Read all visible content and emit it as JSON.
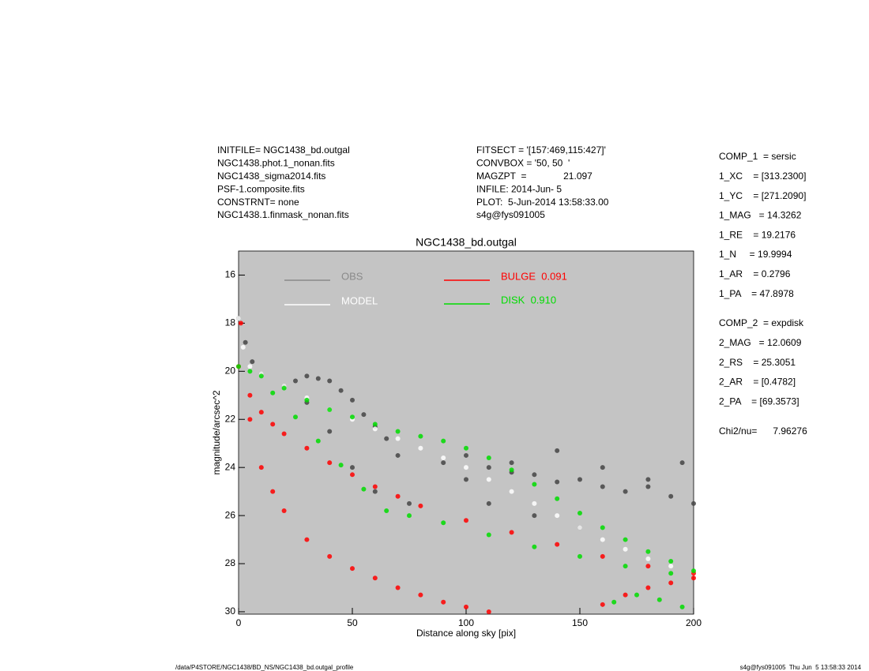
{
  "header": {
    "left": [
      "INITFILE= NGC1438_bd.outgal",
      "NGC1438.phot.1_nonan.fits",
      "NGC1438_sigma2014.fits",
      "PSF-1.composite.fits",
      "CONSTRNT= none",
      "NGC1438.1.finmask_nonan.fits"
    ],
    "middle": [
      "FITSECT = '[157:469,115:427]'",
      "CONVBOX = '50, 50  '",
      "MAGZPT  =              21.097",
      "INFILE: 2014-Jun- 5",
      "PLOT:  5-Jun-2014 13:58:33.00",
      "s4g@fys091005"
    ]
  },
  "params": {
    "comp1": [
      "COMP_1  = sersic",
      "1_XC    = [313.2300]",
      "1_YC    = [271.2090]",
      "1_MAG   = 14.3262",
      "1_RE    = 19.2176",
      "1_N     = 19.9994",
      "1_AR    = 0.2796",
      "1_PA    = 47.8978"
    ],
    "comp2": [
      "COMP_2  = expdisk",
      "2_MAG   = 12.0609",
      "2_RS    = 25.3051",
      "2_AR    = [0.4782]",
      "2_PA    = [69.3573]"
    ],
    "chi2": "Chi2/nu=      7.96276"
  },
  "footer": {
    "left": "/data/P4STORE/NGC1438/BD_NS/NGC1438_bd.outgal_profile",
    "right": "s4g@fys091005  Thu Jun  5 13:58:33 2014"
  },
  "chart_data": {
    "type": "scatter",
    "title": "NGC1438_bd.outgal",
    "x_label": "Distance along sky [pix]",
    "y_label": "magnitude/arcsec^2",
    "xlim": [
      0,
      200
    ],
    "xticks": [
      0,
      50,
      100,
      150,
      200
    ],
    "ylim": [
      15,
      30.1
    ],
    "yticks": [
      16,
      18,
      20,
      22,
      24,
      26,
      28,
      30
    ],
    "y_inverted": true,
    "background": "#c4c4c4",
    "series": [
      {
        "name": "OBS",
        "color": "#454545",
        "legend_color": "#8a8a8a",
        "x": [
          0,
          3,
          6,
          10,
          20,
          25,
          30,
          35,
          40,
          45,
          50,
          55,
          60,
          65,
          70,
          30,
          40,
          50,
          60,
          75,
          90,
          100,
          110,
          120,
          130,
          140,
          150,
          160,
          170,
          180,
          190,
          200,
          100,
          120,
          140,
          160,
          180,
          195,
          110,
          130,
          150
        ],
        "values": [
          17.8,
          18.8,
          19.6,
          20.1,
          20.6,
          20.4,
          20.2,
          20.3,
          20.4,
          20.8,
          21.2,
          21.8,
          22.3,
          22.8,
          23.5,
          21.3,
          22.5,
          24.0,
          25.0,
          25.5,
          23.8,
          24.5,
          24.0,
          24.2,
          24.3,
          24.6,
          24.5,
          24.8,
          25.0,
          24.8,
          25.2,
          25.5,
          23.5,
          23.8,
          23.3,
          24.0,
          24.5,
          23.8,
          25.5,
          26.0,
          26.5
        ]
      },
      {
        "name": "MODEL",
        "color": "#ffffff",
        "legend_color": "#ffffff",
        "x": [
          0,
          2,
          5,
          10,
          20,
          30,
          40,
          50,
          60,
          70,
          80,
          90,
          100,
          110,
          120,
          130,
          140,
          150,
          160,
          170,
          180,
          190,
          200
        ],
        "values": [
          17.8,
          19.0,
          19.8,
          20.1,
          20.6,
          21.1,
          21.6,
          22.0,
          22.4,
          22.8,
          23.2,
          23.6,
          24.0,
          24.5,
          25.0,
          25.5,
          26.0,
          26.5,
          27.0,
          27.4,
          27.8,
          28.1,
          28.4
        ]
      },
      {
        "name": "BULGE  0.091",
        "color": "#ff0000",
        "legend_color": "#ff0000",
        "x": [
          0,
          5,
          10,
          15,
          20,
          30,
          40,
          50,
          60,
          70,
          80,
          100,
          120,
          140,
          160,
          180,
          200,
          1,
          5,
          10,
          15,
          20,
          30,
          40,
          50,
          60,
          70,
          80,
          90,
          100,
          110,
          160,
          170,
          180,
          190,
          200
        ],
        "values": [
          19.8,
          21.0,
          21.7,
          22.2,
          22.6,
          23.2,
          23.8,
          24.3,
          24.8,
          25.2,
          25.6,
          26.2,
          26.7,
          27.2,
          27.7,
          28.1,
          28.4,
          18.0,
          22.0,
          24.0,
          25.0,
          25.8,
          27.0,
          27.7,
          28.2,
          28.6,
          29.0,
          29.3,
          29.6,
          29.8,
          30.0,
          29.7,
          29.3,
          29.0,
          28.8,
          28.6
        ]
      },
      {
        "name": "DISK  0.910",
        "color": "#00dd00",
        "legend_color": "#00dd00",
        "x": [
          0,
          10,
          20,
          30,
          40,
          50,
          60,
          70,
          80,
          90,
          100,
          110,
          120,
          130,
          140,
          150,
          160,
          170,
          180,
          190,
          200,
          5,
          15,
          25,
          35,
          45,
          55,
          65,
          75,
          90,
          110,
          130,
          150,
          170,
          190,
          165,
          175,
          185,
          195
        ],
        "values": [
          19.8,
          20.2,
          20.7,
          21.2,
          21.6,
          21.9,
          22.2,
          22.5,
          22.7,
          22.9,
          23.2,
          23.6,
          24.1,
          24.7,
          25.3,
          25.9,
          26.5,
          27.0,
          27.5,
          27.9,
          28.3,
          20.0,
          20.9,
          21.9,
          22.9,
          23.9,
          24.9,
          25.8,
          26.0,
          26.3,
          26.8,
          27.3,
          27.7,
          28.1,
          28.4,
          29.6,
          29.3,
          29.5,
          29.8
        ]
      }
    ]
  }
}
